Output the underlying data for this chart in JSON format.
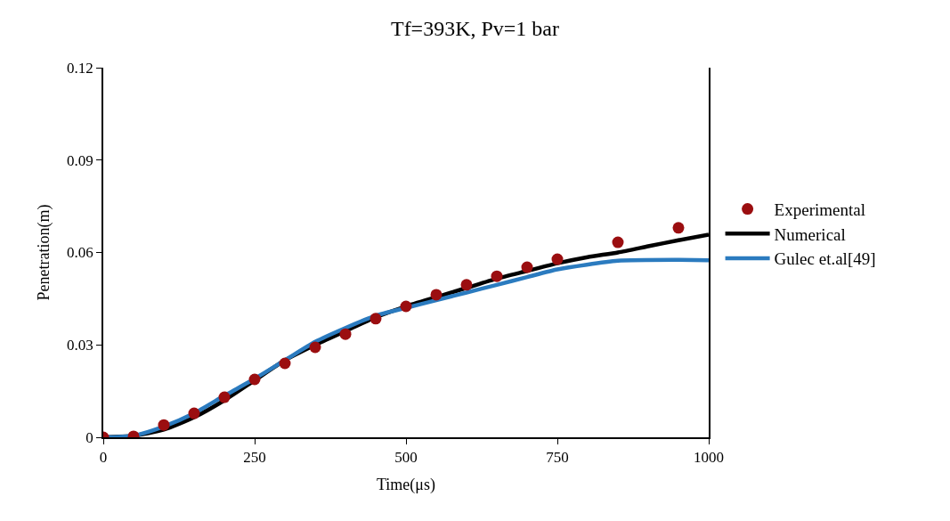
{
  "chart_data": {
    "type": "line",
    "title": "Tf=393K, Pv=1 bar",
    "xlabel": "Time(μs)",
    "ylabel": "Penetration(m)",
    "xlim": [
      0,
      1000
    ],
    "xticks": [
      0,
      250,
      500,
      750,
      1000
    ],
    "ylim": [
      0,
      0.12
    ],
    "yticks": [
      0,
      0.03,
      0.06,
      0.09,
      0.12
    ],
    "legend": "right",
    "series": [
      {
        "name": "Experimental",
        "type": "scatter",
        "marker": "circle",
        "color": "#9b0e10",
        "x": [
          0,
          50,
          100,
          150,
          200,
          250,
          300,
          350,
          400,
          450,
          500,
          550,
          600,
          650,
          700,
          750,
          850,
          950
        ],
        "values": [
          0,
          0.0003,
          0.004,
          0.0078,
          0.013,
          0.0188,
          0.024,
          0.0292,
          0.0335,
          0.0385,
          0.0425,
          0.0463,
          0.0495,
          0.0523,
          0.0552,
          0.0578,
          0.0633,
          0.068
        ]
      },
      {
        "name": "Numerical",
        "color": "#000000",
        "x": [
          0,
          50,
          100,
          150,
          200,
          250,
          300,
          350,
          400,
          450,
          500,
          550,
          600,
          650,
          700,
          750,
          800,
          850,
          900,
          950,
          1000
        ],
        "values": [
          0,
          0.0005,
          0.0025,
          0.0065,
          0.012,
          0.0185,
          0.025,
          0.03,
          0.0345,
          0.039,
          0.0425,
          0.0455,
          0.0485,
          0.0515,
          0.054,
          0.0565,
          0.0585,
          0.06,
          0.062,
          0.064,
          0.0658
        ]
      },
      {
        "name": "Gulec et.al[49]",
        "color": "#2b7bbf",
        "x": [
          0,
          50,
          100,
          150,
          200,
          250,
          300,
          350,
          400,
          450,
          500,
          550,
          600,
          650,
          700,
          750,
          850,
          950,
          1000
        ],
        "values": [
          0,
          0.0005,
          0.0035,
          0.0078,
          0.0135,
          0.019,
          0.025,
          0.031,
          0.0355,
          0.0395,
          0.042,
          0.0445,
          0.047,
          0.0495,
          0.052,
          0.0545,
          0.0573,
          0.0576,
          0.0575
        ]
      }
    ]
  }
}
